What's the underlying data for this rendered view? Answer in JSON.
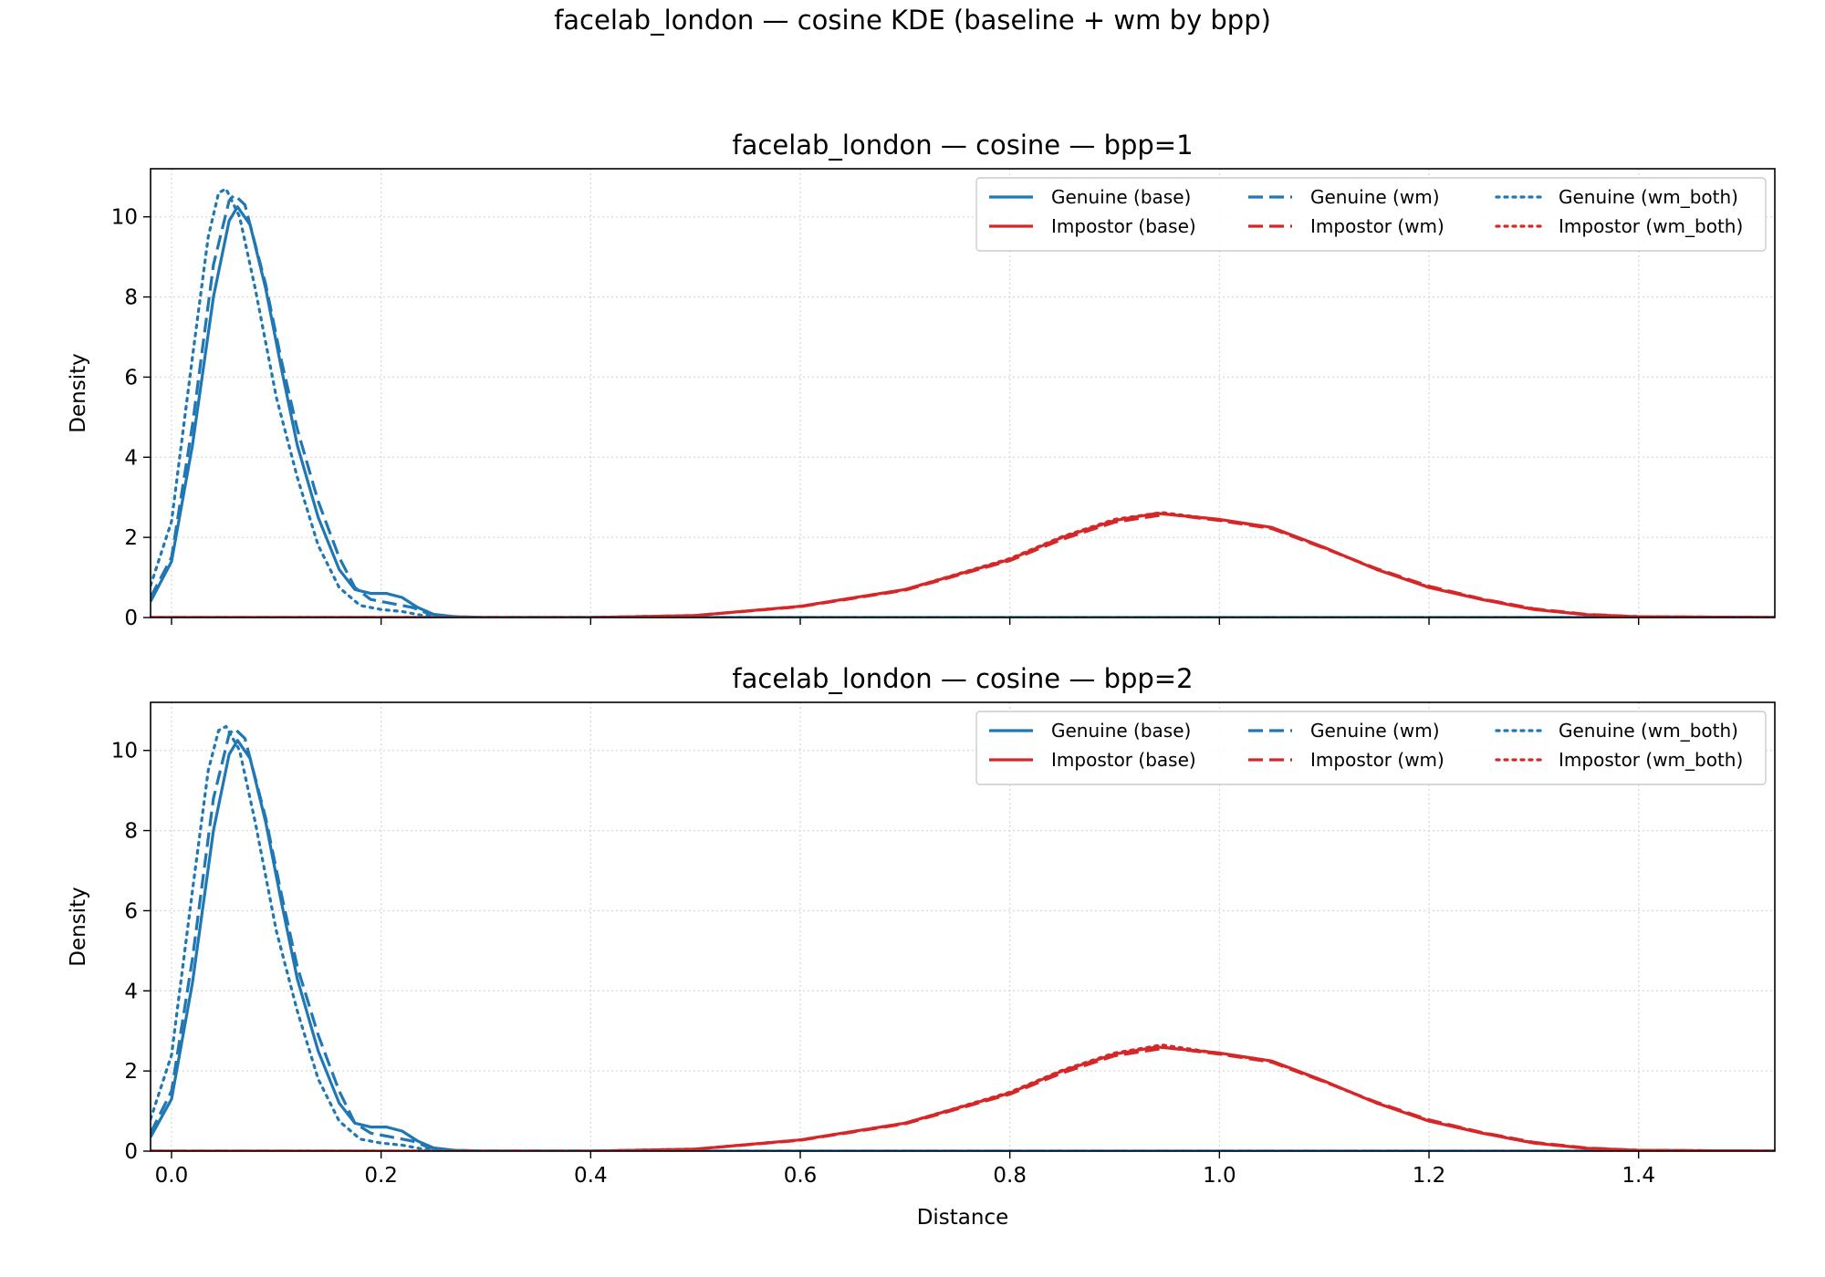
{
  "figure": {
    "suptitle": "facelab_london — cosine KDE (baseline + wm by bpp)"
  },
  "chart_data": [
    {
      "type": "line",
      "title": "facelab_london — cosine — bpp=1",
      "xlabel": "",
      "ylabel": "Density",
      "xlim": [
        -0.02,
        1.53
      ],
      "ylim": [
        0,
        11.2
      ],
      "xticks": [
        0.0,
        0.2,
        0.4,
        0.6,
        0.8,
        1.0,
        1.2,
        1.4
      ],
      "xticklabels": [
        "",
        "",
        "",
        "",
        "",
        "",
        "",
        ""
      ],
      "yticks": [
        0,
        2,
        4,
        6,
        8,
        10
      ],
      "yticklabels": [
        "0",
        "2",
        "4",
        "6",
        "8",
        "10"
      ],
      "grid": true,
      "legend": {
        "placement": "top-right",
        "columns": 3
      },
      "series": [
        {
          "name": "Genuine (base)",
          "color": "#1f77b4",
          "style": "solid",
          "points": [
            [
              -0.02,
              0.4
            ],
            [
              0.0,
              1.4
            ],
            [
              0.02,
              4.3
            ],
            [
              0.04,
              8.0
            ],
            [
              0.055,
              9.9
            ],
            [
              0.063,
              10.25
            ],
            [
              0.075,
              9.8
            ],
            [
              0.09,
              8.2
            ],
            [
              0.105,
              6.2
            ],
            [
              0.12,
              4.3
            ],
            [
              0.14,
              2.5
            ],
            [
              0.16,
              1.2
            ],
            [
              0.175,
              0.7
            ],
            [
              0.19,
              0.6
            ],
            [
              0.205,
              0.6
            ],
            [
              0.22,
              0.5
            ],
            [
              0.235,
              0.25
            ],
            [
              0.25,
              0.08
            ],
            [
              0.27,
              0.02
            ],
            [
              0.3,
              0.0
            ],
            [
              1.53,
              0.0
            ]
          ]
        },
        {
          "name": "Impostor (base)",
          "color": "#d62728",
          "style": "solid",
          "points": [
            [
              -0.02,
              0.0
            ],
            [
              0.4,
              0.0
            ],
            [
              0.5,
              0.05
            ],
            [
              0.6,
              0.28
            ],
            [
              0.7,
              0.7
            ],
            [
              0.8,
              1.45
            ],
            [
              0.85,
              2.0
            ],
            [
              0.9,
              2.42
            ],
            [
              0.94,
              2.6
            ],
            [
              1.0,
              2.45
            ],
            [
              1.05,
              2.25
            ],
            [
              1.1,
              1.75
            ],
            [
              1.15,
              1.2
            ],
            [
              1.2,
              0.75
            ],
            [
              1.25,
              0.45
            ],
            [
              1.3,
              0.2
            ],
            [
              1.35,
              0.07
            ],
            [
              1.4,
              0.02
            ],
            [
              1.53,
              0.0
            ]
          ]
        },
        {
          "name": "Genuine (wm)",
          "color": "#1f77b4",
          "style": "dashed",
          "points": [
            [
              -0.02,
              0.5
            ],
            [
              0.0,
              1.5
            ],
            [
              0.02,
              4.8
            ],
            [
              0.04,
              8.8
            ],
            [
              0.055,
              10.4
            ],
            [
              0.06,
              10.55
            ],
            [
              0.07,
              10.3
            ],
            [
              0.09,
              8.3
            ],
            [
              0.105,
              6.4
            ],
            [
              0.12,
              4.7
            ],
            [
              0.14,
              2.9
            ],
            [
              0.16,
              1.5
            ],
            [
              0.175,
              0.75
            ],
            [
              0.19,
              0.45
            ],
            [
              0.21,
              0.35
            ],
            [
              0.23,
              0.25
            ],
            [
              0.245,
              0.1
            ],
            [
              0.26,
              0.03
            ],
            [
              0.3,
              0.0
            ],
            [
              1.53,
              0.0
            ]
          ]
        },
        {
          "name": "Impostor (wm)",
          "color": "#d62728",
          "style": "dashed",
          "points": [
            [
              -0.02,
              0.0
            ],
            [
              0.4,
              0.0
            ],
            [
              0.5,
              0.05
            ],
            [
              0.6,
              0.27
            ],
            [
              0.7,
              0.68
            ],
            [
              0.8,
              1.42
            ],
            [
              0.85,
              1.95
            ],
            [
              0.9,
              2.38
            ],
            [
              0.95,
              2.58
            ],
            [
              1.0,
              2.42
            ],
            [
              1.05,
              2.22
            ],
            [
              1.1,
              1.73
            ],
            [
              1.15,
              1.22
            ],
            [
              1.2,
              0.78
            ],
            [
              1.25,
              0.47
            ],
            [
              1.3,
              0.22
            ],
            [
              1.35,
              0.08
            ],
            [
              1.4,
              0.02
            ],
            [
              1.53,
              0.0
            ]
          ]
        },
        {
          "name": "Genuine (wm_both)",
          "color": "#1f77b4",
          "style": "dotted",
          "points": [
            [
              -0.02,
              0.8
            ],
            [
              0.0,
              2.4
            ],
            [
              0.02,
              6.5
            ],
            [
              0.035,
              9.5
            ],
            [
              0.045,
              10.6
            ],
            [
              0.052,
              10.7
            ],
            [
              0.065,
              10.0
            ],
            [
              0.08,
              8.2
            ],
            [
              0.1,
              5.5
            ],
            [
              0.12,
              3.5
            ],
            [
              0.14,
              1.8
            ],
            [
              0.16,
              0.75
            ],
            [
              0.18,
              0.3
            ],
            [
              0.2,
              0.2
            ],
            [
              0.22,
              0.15
            ],
            [
              0.24,
              0.05
            ],
            [
              0.27,
              0.0
            ],
            [
              1.53,
              0.0
            ]
          ]
        },
        {
          "name": "Impostor (wm_both)",
          "color": "#d62728",
          "style": "dotted",
          "points": [
            [
              -0.02,
              0.0
            ],
            [
              0.4,
              0.0
            ],
            [
              0.5,
              0.05
            ],
            [
              0.6,
              0.28
            ],
            [
              0.7,
              0.7
            ],
            [
              0.8,
              1.47
            ],
            [
              0.85,
              2.02
            ],
            [
              0.9,
              2.45
            ],
            [
              0.945,
              2.62
            ],
            [
              1.0,
              2.44
            ],
            [
              1.05,
              2.24
            ],
            [
              1.1,
              1.74
            ],
            [
              1.15,
              1.2
            ],
            [
              1.2,
              0.76
            ],
            [
              1.25,
              0.46
            ],
            [
              1.3,
              0.21
            ],
            [
              1.35,
              0.07
            ],
            [
              1.4,
              0.02
            ],
            [
              1.53,
              0.0
            ]
          ]
        }
      ]
    },
    {
      "type": "line",
      "title": "facelab_london — cosine — bpp=2",
      "xlabel": "Distance",
      "ylabel": "Density",
      "xlim": [
        -0.02,
        1.53
      ],
      "ylim": [
        0,
        11.2
      ],
      "xticks": [
        0.0,
        0.2,
        0.4,
        0.6,
        0.8,
        1.0,
        1.2,
        1.4
      ],
      "xticklabels": [
        "0.0",
        "0.2",
        "0.4",
        "0.6",
        "0.8",
        "1.0",
        "1.2",
        "1.4"
      ],
      "yticks": [
        0,
        2,
        4,
        6,
        8,
        10
      ],
      "yticklabels": [
        "0",
        "2",
        "4",
        "6",
        "8",
        "10"
      ],
      "grid": true,
      "legend": {
        "placement": "top-right",
        "columns": 3
      },
      "series": [
        {
          "name": "Genuine (base)",
          "color": "#1f77b4",
          "style": "solid",
          "points": [
            [
              -0.02,
              0.35
            ],
            [
              0.0,
              1.3
            ],
            [
              0.02,
              4.2
            ],
            [
              0.04,
              8.0
            ],
            [
              0.055,
              9.9
            ],
            [
              0.063,
              10.25
            ],
            [
              0.075,
              9.8
            ],
            [
              0.09,
              8.2
            ],
            [
              0.105,
              6.2
            ],
            [
              0.12,
              4.3
            ],
            [
              0.14,
              2.5
            ],
            [
              0.16,
              1.2
            ],
            [
              0.175,
              0.7
            ],
            [
              0.19,
              0.6
            ],
            [
              0.205,
              0.6
            ],
            [
              0.22,
              0.5
            ],
            [
              0.235,
              0.25
            ],
            [
              0.25,
              0.08
            ],
            [
              0.27,
              0.02
            ],
            [
              0.3,
              0.0
            ],
            [
              1.53,
              0.0
            ]
          ]
        },
        {
          "name": "Impostor (base)",
          "color": "#d62728",
          "style": "solid",
          "points": [
            [
              -0.02,
              0.0
            ],
            [
              0.4,
              0.0
            ],
            [
              0.5,
              0.05
            ],
            [
              0.6,
              0.28
            ],
            [
              0.7,
              0.7
            ],
            [
              0.8,
              1.45
            ],
            [
              0.85,
              2.0
            ],
            [
              0.9,
              2.42
            ],
            [
              0.94,
              2.6
            ],
            [
              1.0,
              2.45
            ],
            [
              1.05,
              2.25
            ],
            [
              1.1,
              1.75
            ],
            [
              1.15,
              1.2
            ],
            [
              1.2,
              0.75
            ],
            [
              1.25,
              0.45
            ],
            [
              1.3,
              0.2
            ],
            [
              1.35,
              0.07
            ],
            [
              1.4,
              0.02
            ],
            [
              1.53,
              0.0
            ]
          ]
        },
        {
          "name": "Genuine (wm)",
          "color": "#1f77b4",
          "style": "dashed",
          "points": [
            [
              -0.02,
              0.45
            ],
            [
              0.0,
              1.5
            ],
            [
              0.02,
              4.8
            ],
            [
              0.04,
              8.8
            ],
            [
              0.055,
              10.4
            ],
            [
              0.06,
              10.55
            ],
            [
              0.07,
              10.3
            ],
            [
              0.09,
              8.3
            ],
            [
              0.105,
              6.4
            ],
            [
              0.12,
              4.6
            ],
            [
              0.14,
              2.9
            ],
            [
              0.16,
              1.5
            ],
            [
              0.175,
              0.7
            ],
            [
              0.19,
              0.45
            ],
            [
              0.21,
              0.35
            ],
            [
              0.23,
              0.25
            ],
            [
              0.245,
              0.1
            ],
            [
              0.26,
              0.03
            ],
            [
              0.3,
              0.0
            ],
            [
              1.53,
              0.0
            ]
          ]
        },
        {
          "name": "Impostor (wm)",
          "color": "#d62728",
          "style": "dashed",
          "points": [
            [
              -0.02,
              0.0
            ],
            [
              0.4,
              0.0
            ],
            [
              0.5,
              0.05
            ],
            [
              0.6,
              0.27
            ],
            [
              0.7,
              0.68
            ],
            [
              0.8,
              1.42
            ],
            [
              0.85,
              1.95
            ],
            [
              0.9,
              2.38
            ],
            [
              0.95,
              2.58
            ],
            [
              1.0,
              2.42
            ],
            [
              1.05,
              2.22
            ],
            [
              1.1,
              1.73
            ],
            [
              1.15,
              1.22
            ],
            [
              1.2,
              0.78
            ],
            [
              1.25,
              0.47
            ],
            [
              1.3,
              0.22
            ],
            [
              1.35,
              0.08
            ],
            [
              1.4,
              0.02
            ],
            [
              1.53,
              0.0
            ]
          ]
        },
        {
          "name": "Genuine (wm_both)",
          "color": "#1f77b4",
          "style": "dotted",
          "points": [
            [
              -0.02,
              0.8
            ],
            [
              0.0,
              2.4
            ],
            [
              0.02,
              6.5
            ],
            [
              0.035,
              9.5
            ],
            [
              0.045,
              10.5
            ],
            [
              0.052,
              10.6
            ],
            [
              0.065,
              10.0
            ],
            [
              0.08,
              8.2
            ],
            [
              0.1,
              5.5
            ],
            [
              0.12,
              3.5
            ],
            [
              0.14,
              1.8
            ],
            [
              0.16,
              0.75
            ],
            [
              0.18,
              0.3
            ],
            [
              0.2,
              0.2
            ],
            [
              0.22,
              0.15
            ],
            [
              0.24,
              0.05
            ],
            [
              0.27,
              0.0
            ],
            [
              1.53,
              0.0
            ]
          ]
        },
        {
          "name": "Impostor (wm_both)",
          "color": "#d62728",
          "style": "dotted",
          "points": [
            [
              -0.02,
              0.0
            ],
            [
              0.4,
              0.0
            ],
            [
              0.5,
              0.05
            ],
            [
              0.6,
              0.28
            ],
            [
              0.7,
              0.7
            ],
            [
              0.8,
              1.47
            ],
            [
              0.85,
              2.02
            ],
            [
              0.9,
              2.45
            ],
            [
              0.945,
              2.65
            ],
            [
              1.0,
              2.44
            ],
            [
              1.05,
              2.24
            ],
            [
              1.1,
              1.74
            ],
            [
              1.15,
              1.2
            ],
            [
              1.2,
              0.76
            ],
            [
              1.25,
              0.46
            ],
            [
              1.3,
              0.21
            ],
            [
              1.35,
              0.07
            ],
            [
              1.4,
              0.02
            ],
            [
              1.53,
              0.0
            ]
          ]
        }
      ]
    }
  ]
}
